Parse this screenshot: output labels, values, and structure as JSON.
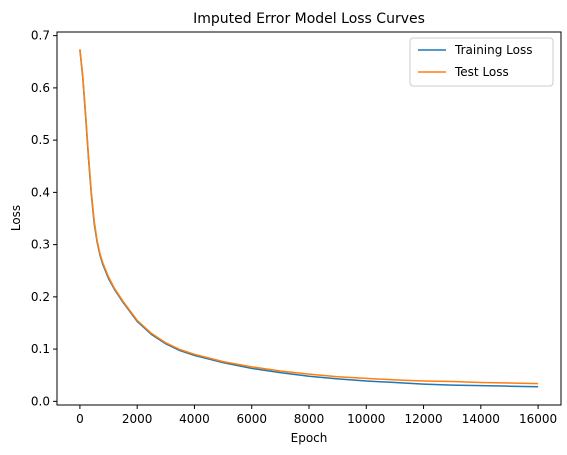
{
  "chart_data": {
    "type": "line",
    "title": "Imputed Error Model Loss Curves",
    "xlabel": "Epoch",
    "ylabel": "Loss",
    "xlim": [
      -800,
      16800
    ],
    "ylim": [
      -0.007,
      0.707
    ],
    "xticks": [
      0,
      2000,
      4000,
      6000,
      8000,
      10000,
      12000,
      14000,
      16000
    ],
    "yticks": [
      0.0,
      0.1,
      0.2,
      0.3,
      0.4,
      0.5,
      0.6,
      0.7
    ],
    "ytick_labels": [
      "0.0",
      "0.1",
      "0.2",
      "0.3",
      "0.4",
      "0.5",
      "0.6",
      "0.7"
    ],
    "grid": false,
    "legend_position": "top-right",
    "x": [
      0,
      100,
      200,
      300,
      400,
      500,
      600,
      700,
      800,
      1000,
      1200,
      1500,
      2000,
      2500,
      3000,
      3500,
      4000,
      5000,
      6000,
      7000,
      8000,
      9000,
      10000,
      11000,
      12000,
      13000,
      14000,
      15000,
      16000
    ],
    "series": [
      {
        "name": "Training Loss",
        "color": "#1f77b4",
        "values": [
          0.673,
          0.62,
          0.545,
          0.465,
          0.395,
          0.34,
          0.305,
          0.28,
          0.262,
          0.235,
          0.215,
          0.19,
          0.153,
          0.128,
          0.11,
          0.097,
          0.088,
          0.074,
          0.063,
          0.055,
          0.048,
          0.043,
          0.039,
          0.036,
          0.033,
          0.031,
          0.03,
          0.029,
          0.028
        ]
      },
      {
        "name": "Test Loss",
        "color": "#ff7f0e",
        "values": [
          0.674,
          0.623,
          0.55,
          0.47,
          0.4,
          0.345,
          0.308,
          0.283,
          0.265,
          0.238,
          0.217,
          0.192,
          0.155,
          0.13,
          0.112,
          0.099,
          0.09,
          0.076,
          0.066,
          0.058,
          0.052,
          0.047,
          0.044,
          0.041,
          0.039,
          0.038,
          0.036,
          0.035,
          0.034
        ]
      }
    ]
  }
}
